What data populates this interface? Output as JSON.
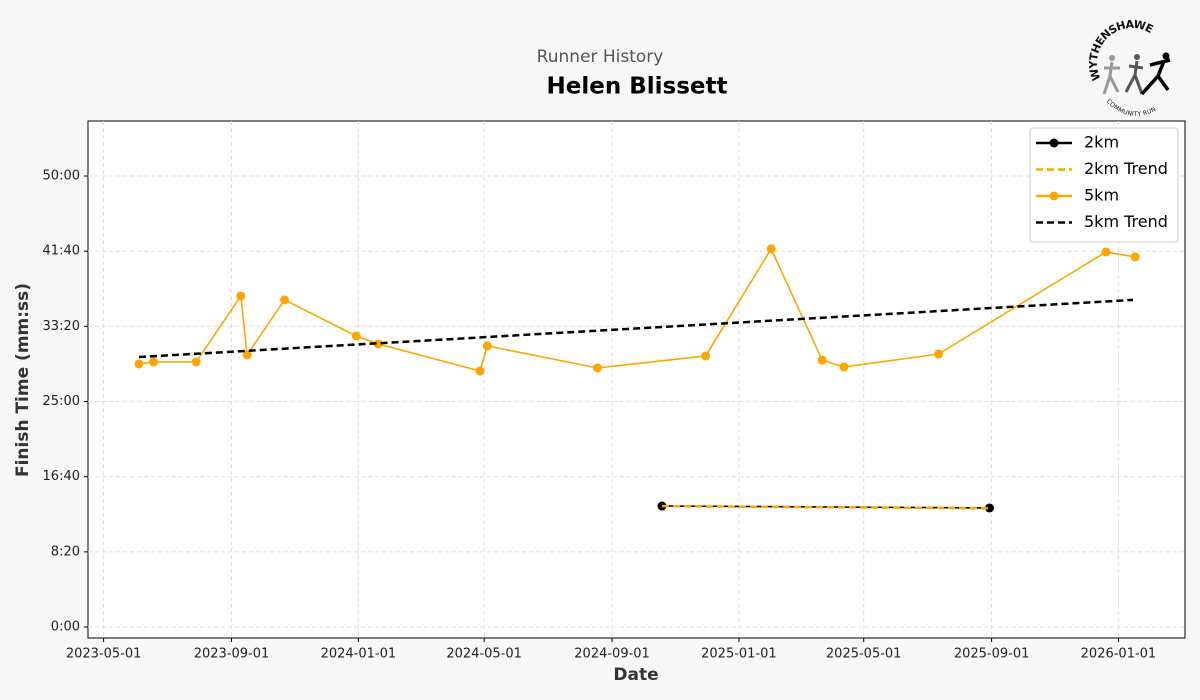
{
  "chart_data": {
    "type": "line",
    "subtitle": "Runner History",
    "title": "Helen Blissett",
    "x_label": "Date",
    "y_label": "Finish Time (mm:ss)",
    "logo": {
      "top": "WYTHENSHAWE",
      "bottom": "COMMUNITY RUN"
    },
    "xlim": [
      "2023-04-16",
      "2026-03-06"
    ],
    "xticks": [
      "2023-05-01",
      "2023-09-01",
      "2024-01-01",
      "2024-05-01",
      "2024-09-01",
      "2025-01-01",
      "2025-05-01",
      "2025-09-01",
      "2026-01-01"
    ],
    "ylim": [
      -73,
      3366
    ],
    "yticks": [
      {
        "value": 0,
        "label": "0:00"
      },
      {
        "value": 500,
        "label": "8:20"
      },
      {
        "value": 1000,
        "label": "16:40"
      },
      {
        "value": 1500,
        "label": "25:00"
      },
      {
        "value": 2000,
        "label": "33:20"
      },
      {
        "value": 2500,
        "label": "41:40"
      },
      {
        "value": 3000,
        "label": "50:00"
      }
    ],
    "grid": true,
    "legend": "upper right",
    "series": [
      {
        "name": "2km",
        "color": "#000000",
        "style": "solid",
        "markers": true,
        "x": [
          "2024-10-19",
          "2025-08-30"
        ],
        "values": [
          805,
          792
        ]
      },
      {
        "name": "2km Trend",
        "color": "#ffa500",
        "style": "dashed",
        "markers": false,
        "x": [
          "2024-10-19",
          "2025-08-30"
        ],
        "values": [
          804,
          790
        ]
      },
      {
        "name": "5km",
        "color": "#ffa500",
        "style": "solid",
        "markers": true,
        "x": [
          "2023-06-04",
          "2023-06-18",
          "2023-07-29",
          "2023-09-10",
          "2023-09-16",
          "2023-10-22",
          "2023-12-30",
          "2024-01-20",
          "2024-04-27",
          "2024-05-04",
          "2024-08-18",
          "2024-11-30",
          "2025-02-01",
          "2025-03-22",
          "2025-04-12",
          "2025-07-12",
          "2025-12-20",
          "2026-01-17"
        ],
        "values": [
          1750,
          1763,
          1763,
          2202,
          1810,
          2176,
          1936,
          1883,
          1703,
          1870,
          1723,
          1803,
          2515,
          1776,
          1730,
          1816,
          2495,
          2462
        ]
      },
      {
        "name": "5km Trend",
        "color": "#000000",
        "style": "dashed",
        "markers": false,
        "x": [
          "2023-06-04",
          "2026-01-15"
        ],
        "values": [
          1796,
          2176
        ]
      }
    ]
  }
}
